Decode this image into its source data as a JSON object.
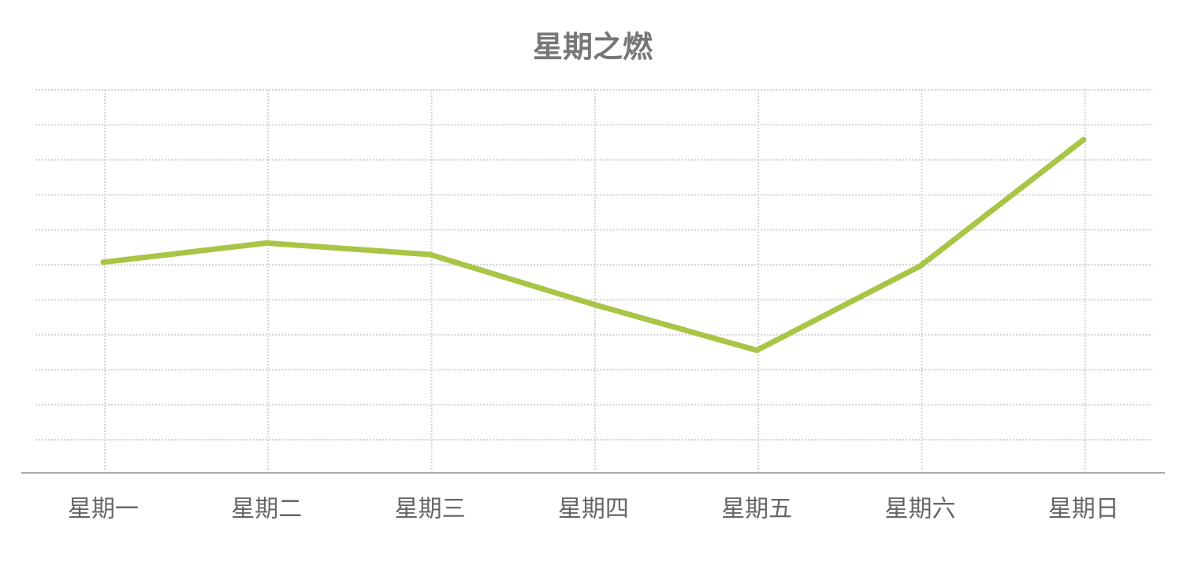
{
  "chart_data": {
    "type": "line",
    "title": "星期之燃",
    "categories": [
      "星期一",
      "星期二",
      "星期三",
      "星期四",
      "星期五",
      "星期六",
      "星期日"
    ],
    "series": [
      {
        "color": "#a8c545",
        "values": [
          55,
          60,
          57,
          44,
          32,
          54,
          87
        ]
      }
    ],
    "ylim": [
      0,
      100
    ],
    "grid": true
  }
}
